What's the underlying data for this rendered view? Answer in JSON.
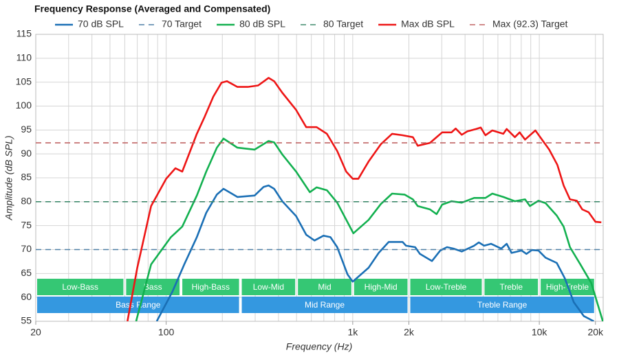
{
  "chart_data": {
    "type": "line",
    "title": "Frequency Response (Averaged and Compensated)",
    "x_label": "Frequency (Hz)",
    "y_label": "Amplitude (dB SPL)",
    "x_scale": "log",
    "xlim": [
      20,
      22000
    ],
    "xticks": [
      20,
      100,
      {
        "value": 1000,
        "label": "1k"
      },
      {
        "value": 2000,
        "label": "2k"
      },
      {
        "value": 10000,
        "label": "10k"
      },
      {
        "value": 20000,
        "label": "20k"
      }
    ],
    "xgrid": [
      20,
      30,
      40,
      50,
      60,
      70,
      80,
      90,
      100,
      200,
      300,
      400,
      500,
      600,
      700,
      800,
      900,
      1000,
      2000,
      3000,
      4000,
      5000,
      6000,
      7000,
      8000,
      9000,
      10000,
      20000
    ],
    "ylim": [
      55,
      115
    ],
    "yticks": [
      55,
      60,
      65,
      70,
      75,
      80,
      85,
      90,
      95,
      100,
      105,
      110,
      115
    ],
    "grid": true,
    "series": [
      {
        "name": "70 dB SPL",
        "color": "#1a6fb5",
        "dash": false,
        "x": [
          89,
          108,
          125,
          146,
          164,
          187,
          203,
          241,
          298,
          333,
          354,
          379,
          419,
          497,
          563,
          624,
          697,
          759,
          826,
          938,
          1000,
          1216,
          1378,
          1560,
          1849,
          1930,
          2160,
          2290,
          2660,
          2945,
          3200,
          3470,
          3842,
          4470,
          4740,
          5060,
          5510,
          6250,
          6684,
          7100,
          8040,
          8530,
          9130,
          9899,
          10800,
          12400,
          13700,
          15300,
          17300,
          19600
        ],
        "values": [
          55,
          61.2,
          66.9,
          72.6,
          77.7,
          81.5,
          82.7,
          81,
          81.3,
          83.1,
          83.4,
          82.7,
          80.1,
          77,
          73.1,
          71.9,
          72.9,
          72.6,
          70.5,
          64.8,
          63.3,
          66.2,
          69.3,
          71.6,
          71.6,
          70.8,
          70.5,
          69.1,
          67.6,
          69.8,
          70.5,
          70.2,
          69.6,
          70.8,
          71.5,
          70.8,
          71.2,
          70.2,
          71.2,
          69.3,
          69.8,
          69.1,
          69.9,
          69.8,
          68.3,
          67.2,
          64,
          59,
          56.1,
          55
        ]
      },
      {
        "name": "70 Target",
        "color": "#4d7fa6",
        "dash": true,
        "x": [
          20,
          22000
        ],
        "values": [
          70,
          70
        ]
      },
      {
        "name": "80 dB SPL",
        "color": "#12b04f",
        "dash": false,
        "x": [
          69,
          83,
          106,
          122,
          146,
          164,
          187,
          203,
          241,
          298,
          354,
          379,
          419,
          497,
          589,
          640,
          727,
          826,
          1008,
          1216,
          1413,
          1625,
          1896,
          2101,
          2230,
          2594,
          2816,
          3017,
          3385,
          3842,
          4470,
          5145,
          5601,
          6412,
          7395,
          8390,
          8910,
          9899,
          10800,
          12400,
          13500,
          14600,
          16600,
          19000,
          21900
        ],
        "values": [
          55,
          66.9,
          72.6,
          74.8,
          81.3,
          86.3,
          91.3,
          93.2,
          91.3,
          90.9,
          92.7,
          92.4,
          89.9,
          86.3,
          82,
          83,
          82.4,
          79.8,
          73.4,
          76.2,
          79.5,
          81.7,
          81.5,
          80.5,
          79.1,
          78.4,
          77.4,
          79.4,
          80.1,
          79.8,
          80.8,
          80.8,
          81.7,
          81,
          80.1,
          80.5,
          79.1,
          80.2,
          79.7,
          77.1,
          74.8,
          70.5,
          66.9,
          63,
          55
        ]
      },
      {
        "name": "80 Target",
        "color": "#3f8a6c",
        "dash": true,
        "x": [
          20,
          22000
        ],
        "values": [
          80,
          80
        ]
      },
      {
        "name": "Max dB SPL",
        "color": "#ee1515",
        "dash": false,
        "x": [
          62,
          70,
          83,
          100,
          112,
          122,
          146,
          161,
          179,
          198,
          212,
          241,
          274,
          311,
          354,
          379,
          419,
          497,
          563,
          640,
          727,
          826,
          922,
          1000,
          1072,
          1216,
          1413,
          1625,
          1849,
          2101,
          2230,
          2594,
          3017,
          3385,
          3563,
          3842,
          4110,
          4585,
          4855,
          5145,
          5601,
          6412,
          6684,
          7395,
          7843,
          8390,
          9526,
          11300,
          12500,
          13500,
          14600,
          15900,
          17000,
          18400,
          20000,
          21500
        ],
        "values": [
          55,
          66.2,
          79.1,
          84.8,
          87,
          86.3,
          94.2,
          97.8,
          102,
          104.9,
          105.2,
          104,
          104,
          104.3,
          105.9,
          105.2,
          102.8,
          99.2,
          95.6,
          95.6,
          94.2,
          90.6,
          86.3,
          84.8,
          84.8,
          88.4,
          92,
          94.2,
          93.9,
          93.5,
          91.7,
          92.3,
          94.5,
          94.5,
          95.3,
          94,
          94.7,
          95.2,
          95.5,
          93.9,
          94.9,
          94.2,
          95.2,
          93.5,
          94.5,
          93,
          94.9,
          90.9,
          87.7,
          83.4,
          80.5,
          80.2,
          78.4,
          77.8,
          75.8,
          75.7
        ]
      },
      {
        "name": "Max (92.3) Target",
        "color": "#c06464",
        "dash": true,
        "x": [
          20,
          22000
        ],
        "values": [
          92.3,
          92.3
        ]
      }
    ],
    "bands": [
      {
        "label": "Low-Bass",
        "from": 20,
        "to": 60,
        "row": 1
      },
      {
        "label": "Bass",
        "from": 60,
        "to": 120,
        "row": 1
      },
      {
        "label": "High-Bass",
        "from": 120,
        "to": 250,
        "row": 1
      },
      {
        "label": "Low-Mid",
        "from": 250,
        "to": 500,
        "row": 1
      },
      {
        "label": "Mid",
        "from": 500,
        "to": 1000,
        "row": 1
      },
      {
        "label": "High-Mid",
        "from": 1000,
        "to": 2000,
        "row": 1
      },
      {
        "label": "Low-Treble",
        "from": 2000,
        "to": 5000,
        "row": 1
      },
      {
        "label": "Treble",
        "from": 5000,
        "to": 10000,
        "row": 1
      },
      {
        "label": "High-Treble",
        "from": 10000,
        "to": 20000,
        "row": 1
      },
      {
        "label": "Bass Range",
        "from": 20,
        "to": 250,
        "row": 2
      },
      {
        "label": "Mid Range",
        "from": 250,
        "to": 2000,
        "row": 2
      },
      {
        "label": "Treble Range",
        "from": 2000,
        "to": 20000,
        "row": 2
      }
    ],
    "band_colors": [
      "#35c774",
      "#3498e0"
    ]
  }
}
